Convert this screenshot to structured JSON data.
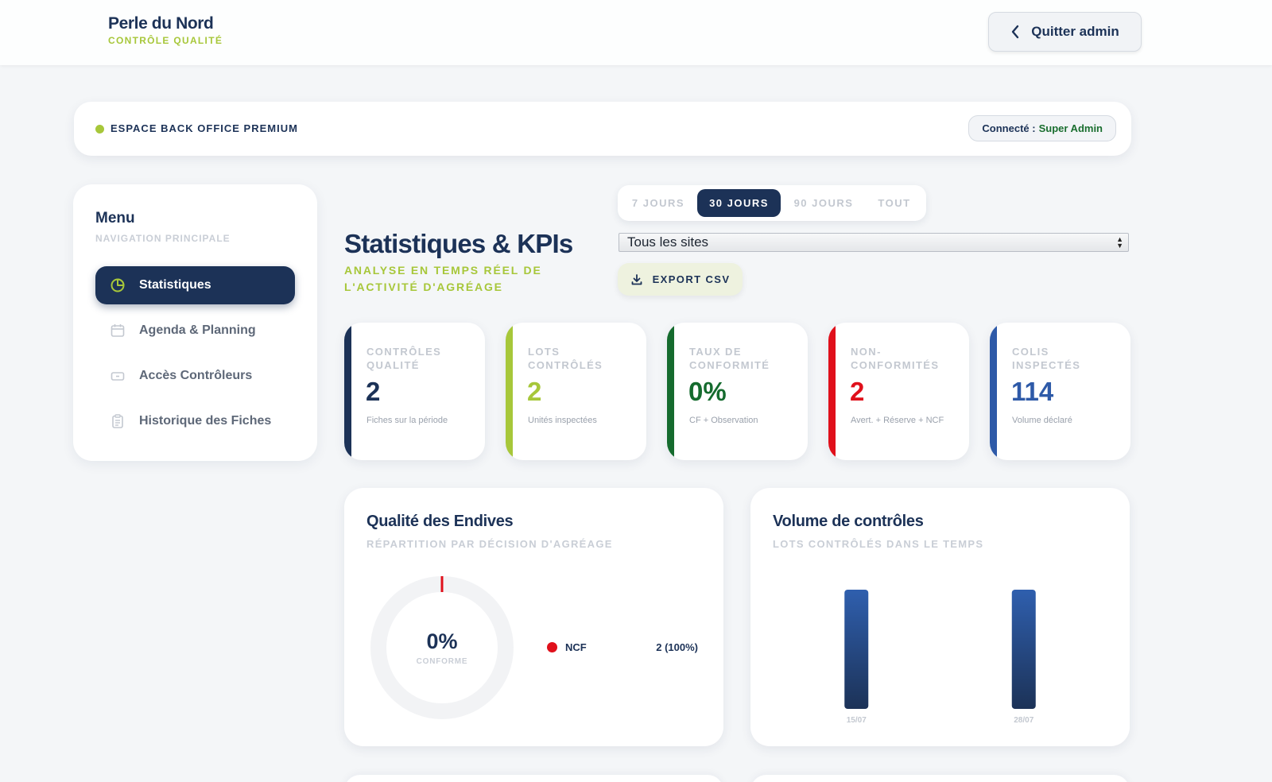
{
  "brand": {
    "name": "Perle du Nord",
    "subtitle": "CONTRÔLE QUALITÉ"
  },
  "header": {
    "quit_label": "Quitter admin",
    "quit_icon": "chevron-left-icon"
  },
  "banner": {
    "title": "ESPACE BACK OFFICE PREMIUM",
    "connected_prefix": "Connecté :",
    "connected_user": "Super Admin",
    "status_color": "#a7c73a"
  },
  "sidebar": {
    "title": "Menu",
    "subtitle": "NAVIGATION PRINCIPALE",
    "items": [
      {
        "label": "Statistiques",
        "icon": "pie-chart-icon",
        "active": true
      },
      {
        "label": "Agenda & Planning",
        "icon": "calendar-icon",
        "active": false
      },
      {
        "label": "Accès Contrôleurs",
        "icon": "key-card-icon",
        "active": false
      },
      {
        "label": "Historique des Fiches",
        "icon": "clipboard-icon",
        "active": false
      }
    ]
  },
  "page": {
    "title": "Statistiques & KPIs",
    "subtitle": "ANALYSE EN TEMPS RÉEL DE L'ACTIVITÉ D'AGRÉAGE"
  },
  "filters": {
    "periods": [
      {
        "label": "7 JOURS",
        "active": false
      },
      {
        "label": "30 JOURS",
        "active": true
      },
      {
        "label": "90 JOURS",
        "active": false
      },
      {
        "label": "TOUT",
        "active": false
      }
    ],
    "site": {
      "selected": "Tous les sites"
    },
    "export_label": "EXPORT CSV"
  },
  "kpis": [
    {
      "label": "Contrôles qualité",
      "value": "2",
      "desc": "Fiches sur la période",
      "color": "#1c3257"
    },
    {
      "label": "Lots contrôlés",
      "value": "2",
      "desc": "Unités inspectées",
      "color": "#a7c73a"
    },
    {
      "label": "Taux de conformité",
      "value": "0%",
      "desc": "CF + Observation",
      "color": "#156b2e"
    },
    {
      "label": "Non-conformités",
      "value": "2",
      "desc": "Avert. + Réserve + NCF",
      "color": "#e0101b"
    },
    {
      "label": "Colis inspectés",
      "value": "114",
      "desc": "Volume déclaré",
      "color": "#2e5aa8"
    }
  ],
  "quality_card": {
    "title": "Qualité des Endives",
    "subtitle": "RÉPARTITION PAR DÉCISION D'AGRÉAGE",
    "center_value": "0%",
    "center_label": "CONFORME",
    "legend": [
      {
        "name": "NCF",
        "value": "2 (100%)",
        "color": "#e0101b"
      }
    ]
  },
  "volume_card": {
    "title": "Volume de contrôles",
    "subtitle": "LOTS CONTRÔLÉS DANS LE TEMPS"
  },
  "chart_data": [
    {
      "type": "pie",
      "title": "Qualité des Endives",
      "categories": [
        "NCF"
      ],
      "values": [
        2
      ],
      "percent": [
        100
      ]
    },
    {
      "type": "bar",
      "title": "Volume de contrôles",
      "categories": [
        "15/07",
        "28/07"
      ],
      "values": [
        1,
        1
      ],
      "ylim": [
        0,
        1
      ],
      "grid": false
    }
  ]
}
